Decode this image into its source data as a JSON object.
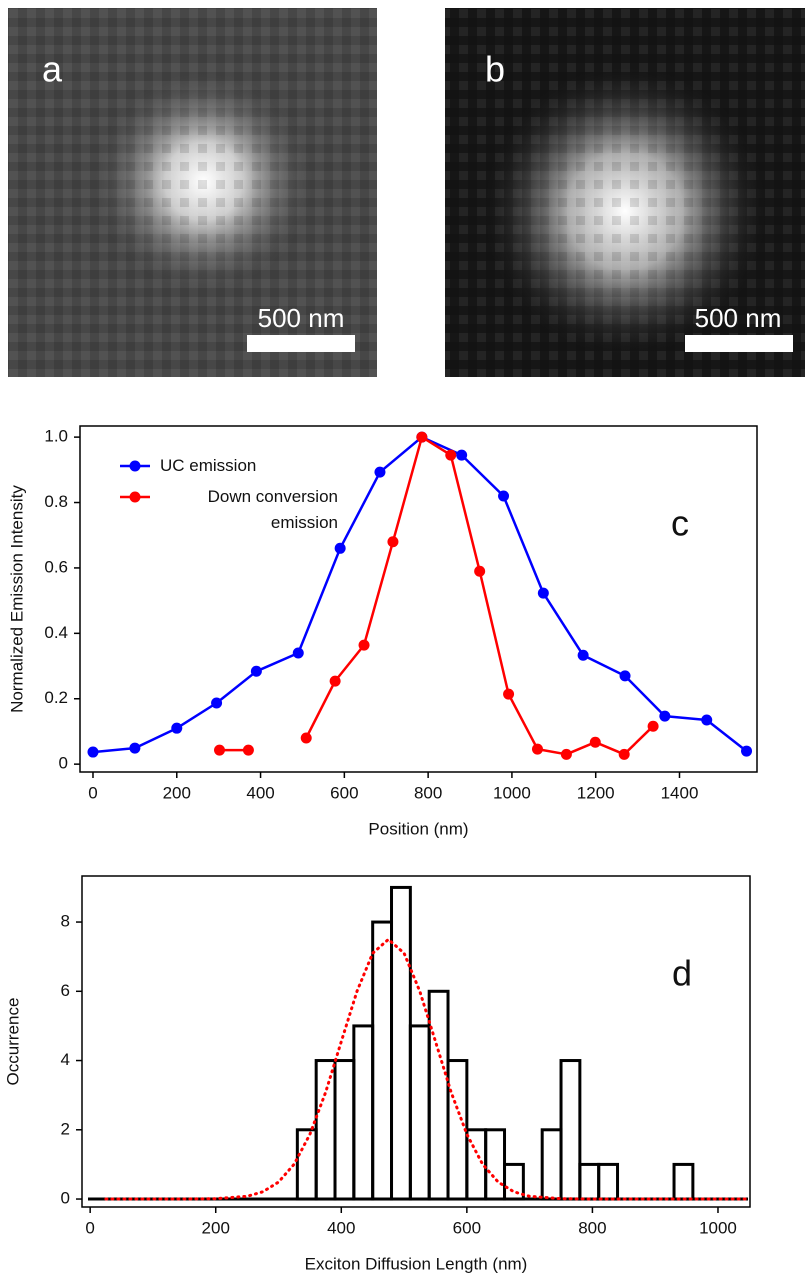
{
  "images": [
    {
      "label": "a",
      "scale_bar": "500 nm"
    },
    {
      "label": "b",
      "scale_bar": "500 nm"
    }
  ],
  "chart_data": [
    {
      "type": "line",
      "annotation": "c",
      "x_label": "Position (nm)",
      "y_label": "Normalized Emission Intensity",
      "xlim": [
        -31,
        1585
      ],
      "ylim": [
        -0.024,
        1.034
      ],
      "xticks": [
        0,
        200,
        400,
        600,
        800,
        1000,
        1200,
        1400
      ],
      "yticks": [
        0,
        0.2,
        0.4,
        0.6,
        0.8,
        {
          "value": 1,
          "label": "1.0"
        }
      ],
      "legend": "upper left",
      "series": [
        {
          "name": "UC emission",
          "color": "#0000ff",
          "x": [
            0,
            100,
            200,
            295,
            390,
            490,
            590,
            685,
            785,
            880,
            980,
            1075,
            1170,
            1270,
            1365,
            1465,
            1560
          ],
          "values": [
            0.037,
            0.049,
            0.11,
            0.187,
            0.284,
            0.34,
            0.66,
            0.893,
            1.0,
            0.945,
            0.82,
            0.523,
            0.333,
            0.27,
            0.147,
            0.135,
            0.04
          ]
        },
        {
          "name": "Down conversion emission",
          "color": "#ff0000",
          "x": [
            302,
            371,
            440,
            509,
            578,
            647,
            716,
            785,
            854,
            923,
            992,
            1061,
            1130,
            1199,
            1268,
            1337
          ],
          "values": [
            0.043,
            0.043,
            null,
            0.08,
            0.254,
            0.364,
            0.68,
            1.0,
            0.945,
            0.59,
            0.214,
            0.046,
            0.03,
            0.067,
            0.03,
            0.116
          ]
        }
      ]
    },
    {
      "type": "histogram",
      "annotation": "d",
      "x_label": "Exciton Diffusion Length (nm)",
      "y_label": "Occurrence",
      "xlim": [
        -13,
        1051
      ],
      "ylim": [
        -0.23,
        9.33
      ],
      "xticks": [
        0,
        200,
        400,
        600,
        800,
        1000
      ],
      "yticks": [
        0,
        2,
        4,
        6,
        8
      ],
      "color": "#000000",
      "bins": [
        330,
        360,
        390,
        420,
        450,
        480,
        510,
        540,
        570,
        600,
        630,
        660,
        690,
        720,
        750,
        780,
        810,
        840,
        870,
        900,
        930,
        960
      ],
      "values": [
        2,
        4,
        4,
        5,
        8,
        9,
        5,
        6,
        4,
        2,
        2,
        1,
        0,
        2,
        4,
        1,
        1,
        0,
        0,
        0,
        1
      ],
      "fit": {
        "color": "#ff0000",
        "x": [
          25,
          150,
          200,
          250,
          275,
          300,
          325,
          350,
          375,
          400,
          425,
          450,
          475,
          500,
          525,
          550,
          575,
          600,
          625,
          650,
          675,
          700,
          750,
          800,
          1050
        ],
        "values": [
          0,
          0,
          0.01,
          0.08,
          0.21,
          0.49,
          1.01,
          1.87,
          3.08,
          4.55,
          6.0,
          7.1,
          7.5,
          7.1,
          6.0,
          4.55,
          3.08,
          1.87,
          1.01,
          0.49,
          0.21,
          0.08,
          0.01,
          0,
          0
        ]
      }
    }
  ]
}
